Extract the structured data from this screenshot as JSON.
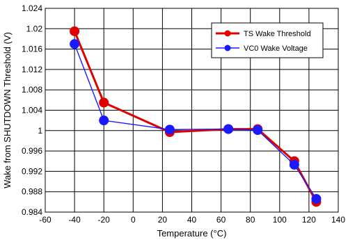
{
  "chart_data": {
    "type": "line",
    "title": "",
    "xlabel": "Temperature (°C)",
    "ylabel": "Wake from SHUTDOWN Threshold (V)",
    "xlim": [
      -60,
      140
    ],
    "ylim": [
      0.984,
      1.024
    ],
    "x_ticks": [
      -60,
      -40,
      -20,
      0,
      20,
      40,
      60,
      80,
      100,
      120,
      140
    ],
    "y_ticks": [
      0.984,
      0.988,
      0.992,
      0.996,
      1,
      1.004,
      1.008,
      1.012,
      1.016,
      1.02,
      1.024
    ],
    "grid": true,
    "legend_position": "top-right",
    "series": [
      {
        "name": "TS Wake Threshold",
        "color": "#e00000",
        "x": [
          -40,
          -20,
          25,
          65,
          85,
          110,
          125
        ],
        "y": [
          1.0195,
          1.0055,
          0.9997,
          1.0003,
          1.0003,
          0.994,
          0.986
        ]
      },
      {
        "name": "VC0 Wake Voltage",
        "color": "#1a1aff",
        "x": [
          -40,
          -20,
          25,
          65,
          85,
          110,
          125
        ],
        "y": [
          1.017,
          1.002,
          1.0002,
          1.0003,
          1.0001,
          0.9933,
          0.9866
        ]
      }
    ]
  }
}
